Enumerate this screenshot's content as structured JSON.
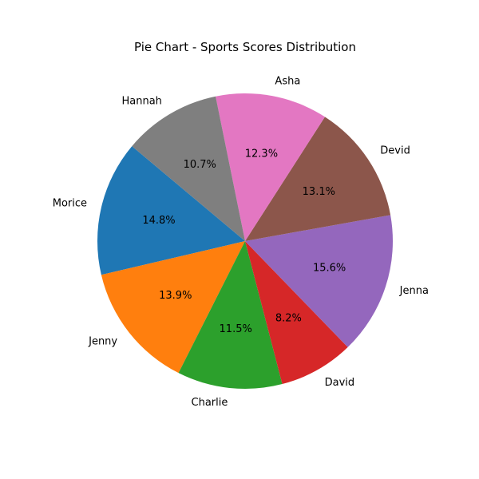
{
  "chart_data": {
    "type": "pie",
    "title": "Pie Chart - Sports Scores Distribution",
    "slices": [
      {
        "label": "Morice",
        "percent": 14.8,
        "pct_text": "14.8%",
        "color": "#1f77b4"
      },
      {
        "label": "Jenny",
        "percent": 13.9,
        "pct_text": "13.9%",
        "color": "#ff7f0e"
      },
      {
        "label": "Charlie",
        "percent": 11.5,
        "pct_text": "11.5%",
        "color": "#2ca02c"
      },
      {
        "label": "David",
        "percent": 8.2,
        "pct_text": "8.2%",
        "color": "#d62728"
      },
      {
        "label": "Jenna",
        "percent": 15.6,
        "pct_text": "15.6%",
        "color": "#9467bd"
      },
      {
        "label": "Devid",
        "percent": 13.1,
        "pct_text": "13.1%",
        "color": "#8c564b"
      },
      {
        "label": "Asha",
        "percent": 12.3,
        "pct_text": "12.3%",
        "color": "#e377c2"
      },
      {
        "label": "Hannah",
        "percent": 10.7,
        "pct_text": "10.7%",
        "color": "#7f7f7f"
      }
    ],
    "start_angle_deg": 140,
    "direction": "counterclockwise",
    "legend": "none"
  }
}
